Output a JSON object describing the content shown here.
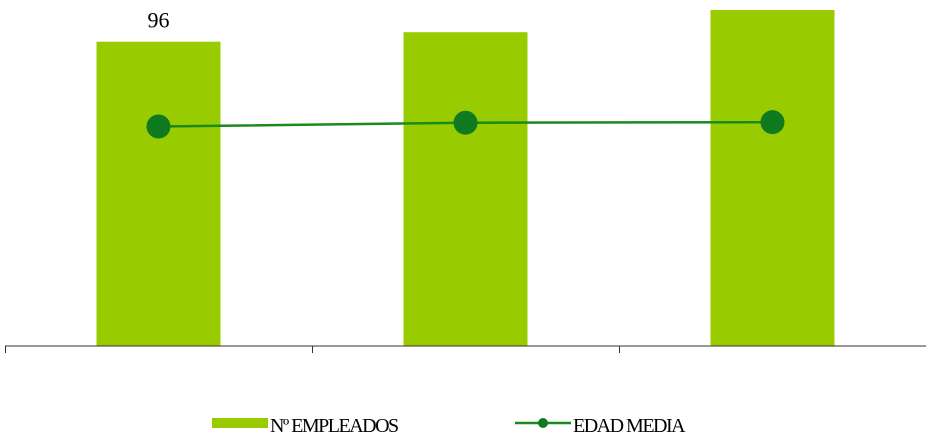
{
  "chart_data": {
    "type": "bar",
    "categories": [
      "",
      "",
      ""
    ],
    "series": [
      {
        "name": "Nº EMPLEADOS",
        "type": "bar",
        "axis": "left",
        "values": [
          96,
          99,
          106
        ],
        "data_labels": [
          "96",
          "",
          ""
        ]
      },
      {
        "name": "EDAD MEDIA",
        "type": "line",
        "axis": "right",
        "values": [
          40.5,
          41.2,
          41.3
        ]
      }
    ],
    "ylim": [
      0,
      106
    ],
    "y2lim": [
      0,
      62
    ],
    "legend_position": "bottom",
    "grid": false,
    "colors": {
      "bar": "#99cc00",
      "line": "#1a8a1a",
      "marker": "#0f7a1f",
      "axis": "#333333"
    }
  }
}
